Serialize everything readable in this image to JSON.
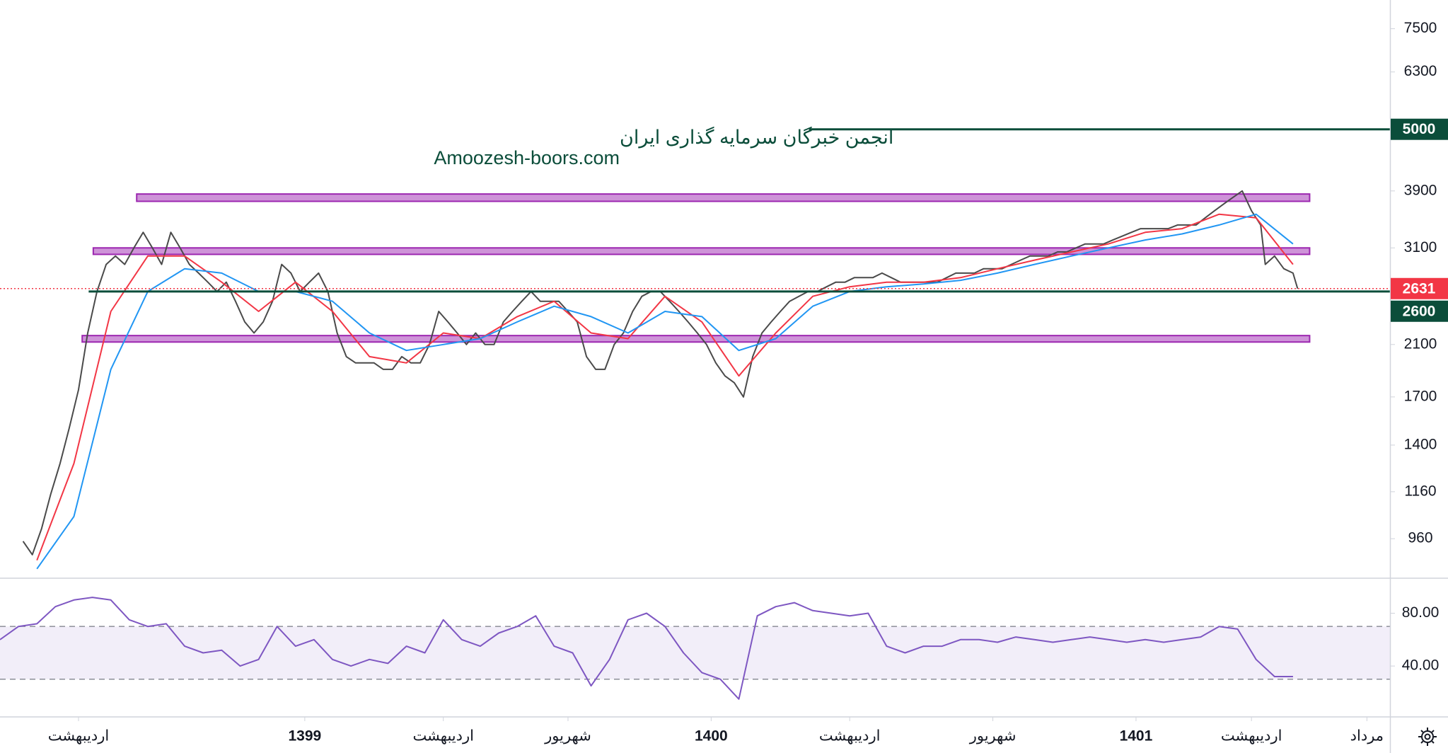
{
  "chart_data": [
    {
      "type": "line",
      "watermark": [
        "انجمن خبرگان سرمایه گذاری ایران",
        "Amoozesh-boors.com"
      ],
      "log_scale": true,
      "xlim": [
        0,
        301
      ],
      "ylim": [
        821,
        8420
      ],
      "yticks": [
        960,
        1160,
        1400,
        1700,
        2100,
        3100,
        3900,
        6300,
        7500
      ],
      "xticks": [
        {
          "value": 17,
          "label": "اردیبهشت"
        },
        {
          "value": 66,
          "label": "1399"
        },
        {
          "value": 96,
          "label": "اردیبهشت"
        },
        {
          "value": 123,
          "label": "شهریور"
        },
        {
          "value": 154,
          "label": "1400"
        },
        {
          "value": 184,
          "label": "اردیبهشت"
        },
        {
          "value": 215,
          "label": "شهریور"
        },
        {
          "value": 246,
          "label": "1401"
        },
        {
          "value": 271,
          "label": "اردیبهشت"
        },
        {
          "value": 296,
          "label": "مرداد"
        }
      ],
      "series": [
        {
          "color": "#4a4a4a",
          "x": [
            5,
            7,
            9,
            11,
            13,
            15,
            17,
            19,
            21,
            23,
            25,
            27,
            29,
            31,
            33,
            35,
            37,
            39,
            41,
            43,
            45,
            47,
            49,
            51,
            53,
            55,
            57,
            59,
            61,
            63,
            65,
            67,
            69,
            71,
            73,
            75,
            77,
            79,
            81,
            83,
            85,
            87,
            89,
            91,
            93,
            95,
            97,
            99,
            101,
            103,
            105,
            107,
            109,
            111,
            113,
            115,
            117,
            119,
            121,
            123,
            125,
            127,
            129,
            131,
            133,
            135,
            137,
            139,
            141,
            143,
            145,
            147,
            149,
            151,
            153,
            155,
            157,
            159,
            161,
            163,
            165,
            167,
            169,
            171,
            173,
            175,
            177,
            179,
            181,
            183,
            185,
            187,
            189,
            191,
            193,
            195,
            197,
            199,
            201,
            203,
            205,
            207,
            209,
            211,
            213,
            215,
            217,
            219,
            221,
            223,
            225,
            227,
            229,
            231,
            233,
            235,
            237,
            239,
            241,
            243,
            245,
            247,
            249,
            251,
            253,
            255,
            257,
            259,
            261,
            263,
            265,
            267,
            269,
            271,
            273,
            274,
            276,
            278,
            280,
            281
          ],
          "values": [
            950,
            900,
            1000,
            1150,
            1300,
            1500,
            1750,
            2200,
            2600,
            2900,
            3000,
            2900,
            3100,
            3300,
            3100,
            2900,
            3300,
            3100,
            2900,
            2800,
            2700,
            2600,
            2700,
            2500,
            2300,
            2200,
            2300,
            2500,
            2900,
            2800,
            2600,
            2700,
            2800,
            2600,
            2200,
            2000,
            1950,
            1950,
            1950,
            1900,
            1900,
            2000,
            1950,
            1950,
            2100,
            2400,
            2300,
            2200,
            2100,
            2200,
            2100,
            2100,
            2300,
            2400,
            2500,
            2600,
            2500,
            2500,
            2500,
            2400,
            2300,
            2000,
            1900,
            1900,
            2100,
            2200,
            2400,
            2550,
            2600,
            2600,
            2500,
            2400,
            2300,
            2200,
            2100,
            1950,
            1850,
            1800,
            1700,
            2000,
            2200,
            2300,
            2400,
            2500,
            2550,
            2600,
            2600,
            2650,
            2700,
            2700,
            2750,
            2750,
            2750,
            2800,
            2750,
            2700,
            2700,
            2700,
            2700,
            2700,
            2750,
            2800,
            2800,
            2800,
            2850,
            2850,
            2850,
            2900,
            2950,
            3000,
            3000,
            3000,
            3050,
            3050,
            3100,
            3150,
            3150,
            3150,
            3200,
            3250,
            3300,
            3350,
            3350,
            3350,
            3350,
            3400,
            3400,
            3400,
            3500,
            3600,
            3700,
            3800,
            3900,
            3600,
            3400,
            2900,
            3000,
            2850,
            2800,
            2631
          ]
        },
        {
          "color": "#f23645",
          "x": [
            8,
            16,
            24,
            32,
            40,
            48,
            56,
            64,
            72,
            80,
            88,
            96,
            104,
            112,
            120,
            128,
            136,
            144,
            152,
            160,
            168,
            176,
            184,
            192,
            200,
            208,
            216,
            224,
            232,
            240,
            248,
            256,
            264,
            272,
            280
          ],
          "values": [
            880,
            1300,
            2400,
            3000,
            3000,
            2700,
            2400,
            2700,
            2400,
            2000,
            1950,
            2200,
            2150,
            2350,
            2500,
            2200,
            2150,
            2550,
            2300,
            1850,
            2200,
            2550,
            2650,
            2700,
            2700,
            2750,
            2850,
            2950,
            3050,
            3150,
            3300,
            3350,
            3550,
            3500,
            2900
          ]
        },
        {
          "color": "#2196f3",
          "x": [
            8,
            16,
            24,
            32,
            40,
            48,
            56,
            64,
            72,
            80,
            88,
            96,
            104,
            112,
            120,
            128,
            136,
            144,
            152,
            160,
            168,
            176,
            184,
            192,
            200,
            208,
            216,
            224,
            232,
            240,
            248,
            256,
            264,
            272,
            280
          ],
          "values": [
            850,
            1050,
            1900,
            2600,
            2850,
            2800,
            2600,
            2600,
            2500,
            2200,
            2050,
            2100,
            2150,
            2300,
            2450,
            2350,
            2200,
            2400,
            2350,
            2050,
            2150,
            2450,
            2600,
            2650,
            2680,
            2720,
            2800,
            2900,
            3000,
            3100,
            3200,
            3280,
            3400,
            3550,
            3150
          ]
        }
      ],
      "zones": [
        {
          "low": 3740,
          "high": 3852,
          "x": [
            29.6,
            283.6
          ],
          "color": "#ce93d8"
        },
        {
          "low": 3020,
          "high": 3100,
          "x": [
            20.2,
            283.6
          ],
          "color": "#ce93d8"
        },
        {
          "low": 2121,
          "high": 2177,
          "x": [
            17.8,
            283.6
          ],
          "color": "#ce93d8"
        }
      ],
      "levels": [
        {
          "value": 5000,
          "color": "#0b4d3a",
          "x": [
            175.2,
            301
          ]
        },
        {
          "value": 2631,
          "color": "#f23645",
          "style": "dotted"
        },
        {
          "value": 2600,
          "color": "#0b4d3a",
          "x": [
            19.2,
            301
          ]
        }
      ]
    },
    {
      "type": "line",
      "xlim": [
        0,
        301
      ],
      "ylim": [
        2,
        106
      ],
      "yticks": [
        {
          "value": 40,
          "label": "40.00"
        },
        {
          "value": 80,
          "label": "80.00"
        }
      ],
      "band": [
        30,
        70
      ],
      "series": [
        {
          "color": "#7e57c2",
          "x": [
            0,
            4,
            8,
            12,
            16,
            20,
            24,
            28,
            32,
            36,
            40,
            44,
            48,
            52,
            56,
            60,
            64,
            68,
            72,
            76,
            80,
            84,
            88,
            92,
            96,
            100,
            104,
            108,
            112,
            116,
            120,
            124,
            128,
            132,
            136,
            140,
            144,
            148,
            152,
            156,
            160,
            164,
            168,
            172,
            176,
            180,
            184,
            188,
            192,
            196,
            200,
            204,
            208,
            212,
            216,
            220,
            224,
            228,
            232,
            236,
            240,
            244,
            248,
            252,
            256,
            260,
            264,
            268,
            272,
            276,
            280
          ],
          "values": [
            60,
            70,
            72,
            85,
            90,
            92,
            90,
            75,
            70,
            72,
            55,
            50,
            52,
            40,
            45,
            70,
            55,
            60,
            45,
            40,
            45,
            42,
            55,
            50,
            75,
            60,
            55,
            65,
            70,
            78,
            55,
            50,
            25,
            45,
            75,
            80,
            70,
            50,
            35,
            30,
            15,
            78,
            85,
            88,
            82,
            80,
            78,
            80,
            55,
            50,
            55,
            55,
            60,
            60,
            58,
            62,
            60,
            58,
            60,
            62,
            60,
            58,
            60,
            58,
            60,
            62,
            70,
            68,
            45,
            32,
            32
          ]
        }
      ]
    }
  ]
}
